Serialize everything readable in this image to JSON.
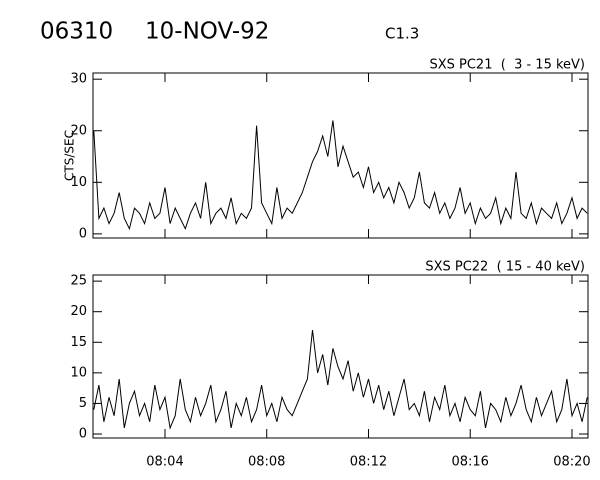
{
  "header": {
    "id": "06310",
    "date": "10-NOV-92",
    "class": "C1.3"
  },
  "chart_data": [
    {
      "type": "line",
      "title": "SXS PC21  (  3 - 15 keV)",
      "y_label": "CTS/SEC",
      "color": "#000000",
      "xlim": [
        1.17,
        20.63
      ],
      "ylim": [
        -0.8,
        31.2
      ],
      "yticks": [
        0,
        10,
        20,
        30
      ],
      "x": [
        1.2,
        1.4,
        1.6,
        1.8,
        2,
        2.2,
        2.4,
        2.6,
        2.8,
        3,
        3.2,
        3.4,
        3.6,
        3.8,
        4,
        4.2,
        4.4,
        4.6,
        4.8,
        5,
        5.2,
        5.4,
        5.6,
        5.8,
        6,
        6.2,
        6.4,
        6.6,
        6.8,
        7,
        7.2,
        7.4,
        7.6,
        7.8,
        8,
        8.2,
        8.4,
        8.6,
        8.8,
        9,
        9.2,
        9.4,
        9.6,
        9.8,
        10,
        10.2,
        10.4,
        10.6,
        10.8,
        11,
        11.2,
        11.4,
        11.6,
        11.8,
        12,
        12.2,
        12.4,
        12.6,
        12.8,
        13,
        13.2,
        13.4,
        13.6,
        13.8,
        14,
        14.2,
        14.4,
        14.6,
        14.8,
        15,
        15.2,
        15.4,
        15.6,
        15.8,
        16,
        16.2,
        16.4,
        16.6,
        16.8,
        17,
        17.2,
        17.4,
        17.6,
        17.8,
        18,
        18.2,
        18.4,
        18.6,
        18.8,
        19,
        19.2,
        19.4,
        19.6,
        19.8,
        20,
        20.2,
        20.4,
        20.6
      ],
      "values": [
        20,
        3,
        5,
        2,
        4,
        8,
        3,
        1,
        5,
        4,
        2,
        6,
        3,
        4,
        9,
        2,
        5,
        3,
        1,
        4,
        6,
        3,
        10,
        2,
        4,
        5,
        3,
        7,
        2,
        4,
        3,
        5,
        21,
        6,
        4,
        2,
        9,
        3,
        5,
        4,
        6,
        8,
        11,
        14,
        16,
        19,
        15,
        22,
        13,
        17,
        14,
        11,
        12,
        9,
        13,
        8,
        10,
        7,
        9,
        6,
        10,
        8,
        5,
        7,
        12,
        6,
        5,
        8,
        4,
        6,
        3,
        5,
        9,
        4,
        6,
        2,
        5,
        3,
        4,
        7,
        2,
        5,
        3,
        12,
        4,
        3,
        6,
        2,
        5,
        4,
        3,
        6,
        2,
        4,
        7,
        3,
        5,
        4
      ]
    },
    {
      "type": "line",
      "title": "SXS PC22  ( 15 - 40 keV)",
      "color": "#000000",
      "xlim": [
        1.17,
        20.63
      ],
      "ylim": [
        -0.65,
        26
      ],
      "yticks": [
        0,
        5,
        10,
        15,
        20,
        25
      ],
      "xticks": [
        {
          "value": 4,
          "label": "08:04"
        },
        {
          "value": 8,
          "label": "08:08"
        },
        {
          "value": 12,
          "label": "08:12"
        },
        {
          "value": 16,
          "label": "08:16"
        },
        {
          "value": 20,
          "label": "08:20"
        }
      ],
      "x": [
        1.2,
        1.4,
        1.6,
        1.8,
        2,
        2.2,
        2.4,
        2.6,
        2.8,
        3,
        3.2,
        3.4,
        3.6,
        3.8,
        4,
        4.2,
        4.4,
        4.6,
        4.8,
        5,
        5.2,
        5.4,
        5.6,
        5.8,
        6,
        6.2,
        6.4,
        6.6,
        6.8,
        7,
        7.2,
        7.4,
        7.6,
        7.8,
        8,
        8.2,
        8.4,
        8.6,
        8.8,
        9,
        9.2,
        9.4,
        9.6,
        9.8,
        10,
        10.2,
        10.4,
        10.6,
        10.8,
        11,
        11.2,
        11.4,
        11.6,
        11.8,
        12,
        12.2,
        12.4,
        12.6,
        12.8,
        13,
        13.2,
        13.4,
        13.6,
        13.8,
        14,
        14.2,
        14.4,
        14.6,
        14.8,
        15,
        15.2,
        15.4,
        15.6,
        15.8,
        16,
        16.2,
        16.4,
        16.6,
        16.8,
        17,
        17.2,
        17.4,
        17.6,
        17.8,
        18,
        18.2,
        18.4,
        18.6,
        18.8,
        19,
        19.2,
        19.4,
        19.6,
        19.8,
        20,
        20.2,
        20.4,
        20.6
      ],
      "values": [
        4,
        8,
        2,
        6,
        3,
        9,
        1,
        5,
        7,
        3,
        5,
        2,
        8,
        4,
        6,
        1,
        3,
        9,
        4,
        2,
        6,
        3,
        5,
        8,
        2,
        4,
        7,
        1,
        5,
        3,
        6,
        2,
        4,
        8,
        3,
        5,
        2,
        6,
        4,
        3,
        5,
        7,
        9,
        17,
        10,
        13,
        8,
        14,
        11,
        9,
        12,
        7,
        10,
        6,
        9,
        5,
        8,
        4,
        7,
        3,
        6,
        9,
        4,
        5,
        3,
        7,
        2,
        6,
        4,
        8,
        3,
        5,
        2,
        6,
        4,
        3,
        7,
        1,
        5,
        4,
        2,
        6,
        3,
        5,
        8,
        4,
        2,
        6,
        3,
        5,
        7,
        2,
        4,
        9,
        3,
        5,
        2,
        6
      ]
    }
  ]
}
